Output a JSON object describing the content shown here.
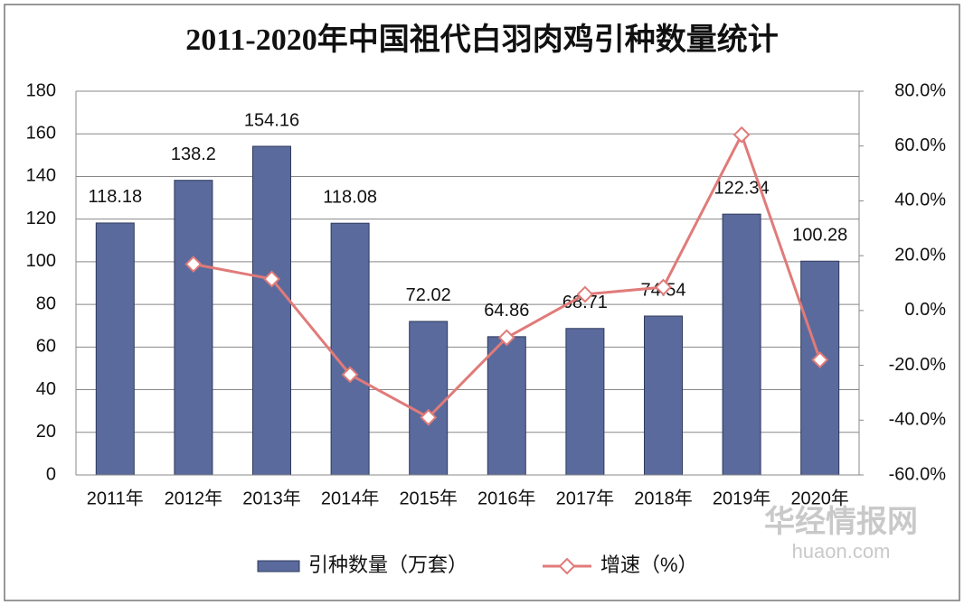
{
  "chart_data": {
    "type": "bar_line",
    "title": "2011-2020年中国祖代白羽肉鸡引种数量统计",
    "categories": [
      "2011年",
      "2012年",
      "2013年",
      "2014年",
      "2015年",
      "2016年",
      "2017年",
      "2018年",
      "2019年",
      "2020年"
    ],
    "series": [
      {
        "name": "引种数量（万套）",
        "type": "bar",
        "color": "#5b6a9c",
        "values": [
          118.18,
          138.2,
          154.16,
          118.08,
          72.02,
          64.86,
          68.71,
          74.54,
          122.34,
          100.28
        ]
      },
      {
        "name": "增速（%）",
        "type": "line",
        "axis": "y2",
        "color": "#e07b79",
        "values": [
          null,
          16.9,
          11.5,
          -23.4,
          -39.0,
          -9.9,
          5.9,
          8.5,
          64.1,
          -18.0
        ]
      }
    ],
    "ylim": [
      0,
      180
    ],
    "yticks": [
      0,
      20,
      40,
      60,
      80,
      100,
      120,
      140,
      160,
      180
    ],
    "y2lim": [
      -60,
      80
    ],
    "y2ticks": [
      {
        "value": -60,
        "label": "-60.0%"
      },
      {
        "value": -40,
        "label": "-40.0%"
      },
      {
        "value": -20,
        "label": "-20.0%"
      },
      {
        "value": 0,
        "label": "0.0%"
      },
      {
        "value": 20,
        "label": "20.0%"
      },
      {
        "value": 40,
        "label": "40.0%"
      },
      {
        "value": 60,
        "label": "60.0%"
      },
      {
        "value": 80,
        "label": "80.0%"
      }
    ],
    "grid": true,
    "legend": "bottom",
    "watermark": {
      "name": "华经情报网",
      "url": "huaon.com"
    }
  }
}
